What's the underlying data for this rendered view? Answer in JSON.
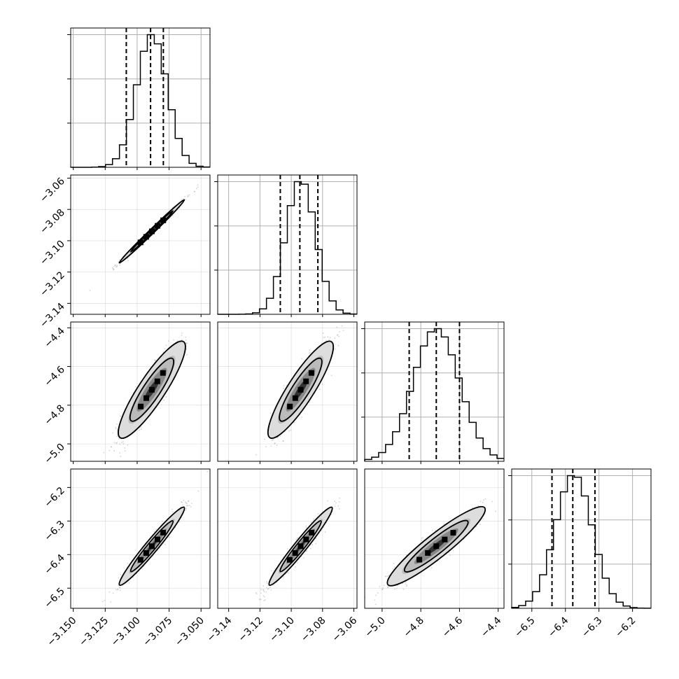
{
  "chart_data": {
    "type": "corner",
    "grid": true,
    "quantiles": [
      0.16,
      0.5,
      0.84
    ],
    "parameters": [
      {
        "mean": -3.0885,
        "sd": 0.012,
        "quantile_lines": [
          -3.1085,
          -3.0895,
          -3.0795
        ],
        "range": [
          -3.152,
          -3.043
        ],
        "ticks": [
          -3.15,
          -3.125,
          -3.1,
          -3.075,
          -3.05
        ],
        "tick_labels": [
          "−3.150",
          "−3.125",
          "−3.100",
          "−3.075",
          "−3.050"
        ]
      },
      {
        "mean": -3.094,
        "sd": 0.0095,
        "quantile_lines": [
          -3.107,
          -3.0945,
          -3.083
        ],
        "range": [
          -3.147,
          -3.058
        ],
        "ticks": [
          -3.14,
          -3.12,
          -3.1,
          -3.08,
          -3.06
        ],
        "tick_labels": [
          "−3.14",
          "−3.12",
          "−3.10",
          "−3.08",
          "−3.06"
        ]
      },
      {
        "mean": -4.72,
        "sd": 0.12,
        "quantile_lines": [
          -4.86,
          -4.72,
          -4.6
        ],
        "range": [
          -5.09,
          -4.37
        ],
        "ticks": [
          -5.0,
          -4.8,
          -4.6,
          -4.4
        ],
        "tick_labels": [
          "−5.0",
          "−4.8",
          "−4.6",
          "−4.4"
        ]
      },
      {
        "mean": -6.375,
        "sd": 0.055,
        "quantile_lines": [
          -6.44,
          -6.378,
          -6.312
        ],
        "range": [
          -6.56,
          -6.145
        ],
        "ticks": [
          -6.5,
          -6.4,
          -6.3,
          -6.2
        ],
        "tick_labels": [
          "−6.5",
          "−6.4",
          "−6.3",
          "−6.2"
        ]
      }
    ],
    "correlations": [
      [
        1.0,
        0.995,
        0.9,
        0.97
      ],
      [
        0.995,
        1.0,
        0.9,
        0.97
      ],
      [
        0.9,
        0.9,
        1.0,
        0.93
      ],
      [
        0.97,
        0.97,
        0.93,
        1.0
      ]
    ],
    "colors": {
      "line": "#000000",
      "grid": "#b0b0b0",
      "scatter": "#808080",
      "density_low": "#cccccc",
      "density_high": "#000000"
    }
  }
}
